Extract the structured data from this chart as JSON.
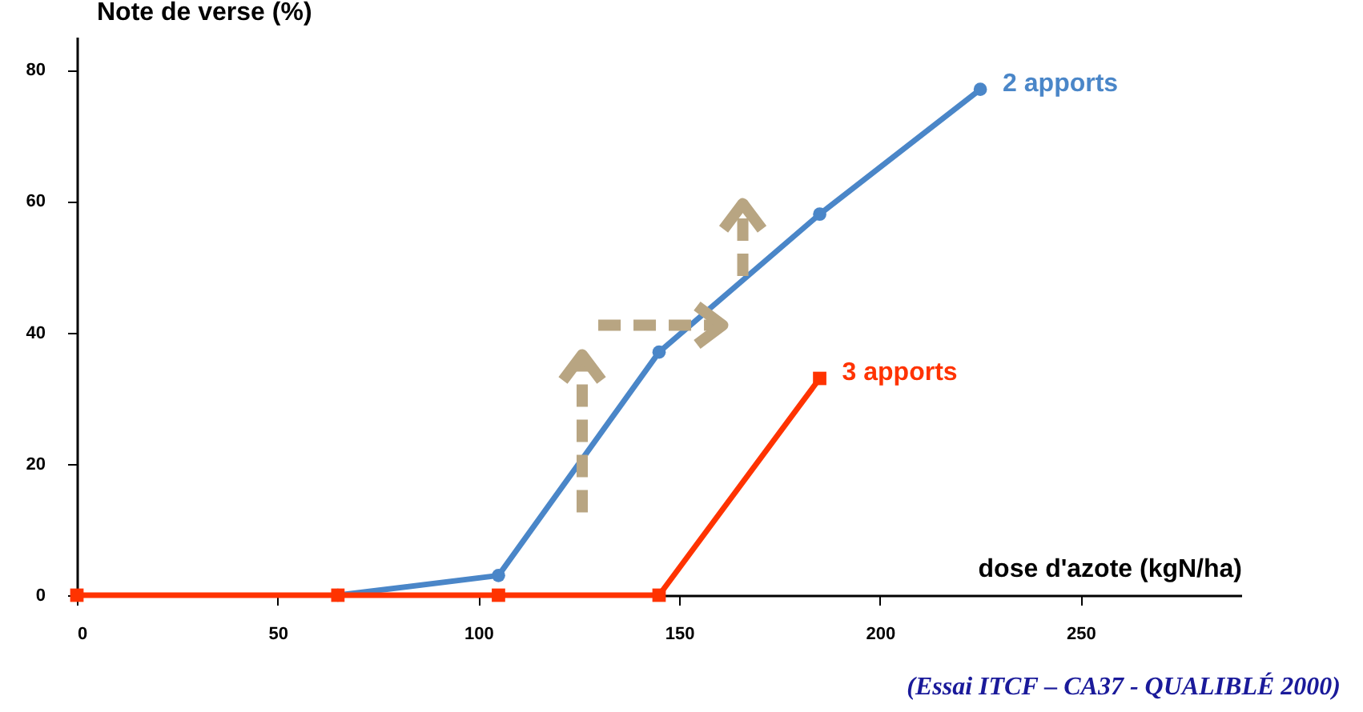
{
  "chart_data": {
    "type": "line",
    "xlabel": "dose d'azote (kgN/ha)",
    "ylabel": "Note de verse (%)",
    "xlim": [
      0,
      290
    ],
    "xticks": [
      0,
      50,
      100,
      150,
      200,
      250
    ],
    "ylim": [
      0,
      85
    ],
    "yticks": [
      0,
      20,
      40,
      60,
      80
    ],
    "grid": false,
    "legend": false,
    "series": [
      {
        "name": "2 apports",
        "color": "#4a86c8",
        "marker": "circle",
        "x": [
          65,
          105,
          145,
          185,
          225
        ],
        "values": [
          0,
          3,
          37,
          58,
          77
        ]
      },
      {
        "name": "3 apports",
        "color": "#ff3300",
        "marker": "square",
        "x": [
          0,
          65,
          105,
          145,
          185
        ],
        "values": [
          0,
          0,
          0,
          0,
          33
        ]
      }
    ],
    "annotations": [
      "(Essai ITCF – CA37 - QUALIBLÉ 2000)"
    ]
  }
}
